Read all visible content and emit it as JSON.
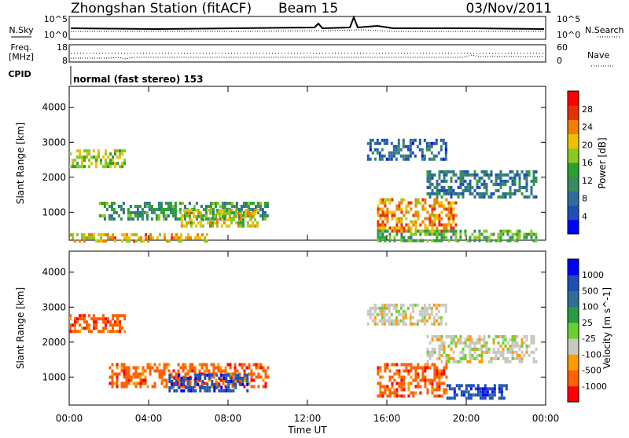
{
  "header": {
    "station": "Zhongshan Station (fitACF)",
    "beam": "Beam 15",
    "date": "03/Nov/2011"
  },
  "top_panel": {
    "nsky_label": "N.Sky",
    "nsearch_label": "N.Search",
    "left_ticks": [
      "10^5",
      "10^0"
    ],
    "right_ticks": [
      "10^5",
      "10^0"
    ]
  },
  "freq_panel": {
    "freq_label": "Freq.",
    "freq_unit": "[MHz]",
    "nave_label": "Nave",
    "left_ticks": [
      "18",
      "8"
    ],
    "right_ticks": [
      "60",
      "0"
    ]
  },
  "cpid_panel": {
    "label": "CPID",
    "mode_text": "normal (fast stereo) 153"
  },
  "colors": {
    "power_scale": [
      "#0000ff",
      "#1e4fb4",
      "#2e6e9a",
      "#3a8a60",
      "#2aa030",
      "#8dc820",
      "#f0c000",
      "#f08000",
      "#e83000",
      "#ff0000"
    ],
    "velocity_scale": [
      "#ff0000",
      "#ff6000",
      "#ff9a00",
      "#c8c8c0",
      "#6ad030",
      "#2a9a40",
      "#2e6e9a",
      "#1e4fb4",
      "#0000ff"
    ]
  },
  "chart_data": [
    {
      "type": "heatmap",
      "title": "",
      "xlabel": "Time UT",
      "ylabel": "Slant Range [km]",
      "x_ticks": [
        "00:00",
        "04:00",
        "08:00",
        "12:00",
        "16:00",
        "20:00",
        "00:00"
      ],
      "y_ticks": [
        "1000",
        "2000",
        "3000",
        "4000"
      ],
      "ylim": [
        200,
        4600
      ],
      "colorbar": {
        "label": "Power [dB]",
        "ticks": [
          "4",
          "8",
          "12",
          "16",
          "20",
          "24",
          "28"
        ],
        "range": [
          0,
          32
        ]
      },
      "echo_regions": [
        {
          "t0": 0.0,
          "t1": 2.8,
          "r0": 2300,
          "r1": 2800,
          "level": 18
        },
        {
          "t0": 1.5,
          "t1": 10.0,
          "r0": 800,
          "r1": 1300,
          "level": 12
        },
        {
          "t0": 5.5,
          "t1": 9.5,
          "r0": 600,
          "r1": 1100,
          "level": 20
        },
        {
          "t0": 0.0,
          "t1": 7.0,
          "r0": 200,
          "r1": 400,
          "level": 22
        },
        {
          "t0": 15.5,
          "t1": 19.5,
          "r0": 500,
          "r1": 1400,
          "level": 24
        },
        {
          "t0": 15.5,
          "t1": 23.5,
          "r0": 200,
          "r1": 500,
          "level": 14
        },
        {
          "t0": 15.0,
          "t1": 19.0,
          "r0": 2500,
          "r1": 3100,
          "level": 6
        },
        {
          "t0": 18.0,
          "t1": 23.5,
          "r0": 1400,
          "r1": 2200,
          "level": 8
        }
      ]
    },
    {
      "type": "heatmap",
      "title": "",
      "xlabel": "Time UT",
      "ylabel": "Slant Range [km]",
      "x_ticks": [
        "00:00",
        "04:00",
        "08:00",
        "12:00",
        "16:00",
        "20:00",
        "00:00"
      ],
      "y_ticks": [
        "1000",
        "2000",
        "3000",
        "4000"
      ],
      "ylim": [
        200,
        4600
      ],
      "colorbar": {
        "label": "Velocity [m s^-1]",
        "ticks": [
          "1000",
          "500",
          "100",
          "25",
          "-25",
          "-100",
          "-500",
          "-1000"
        ]
      },
      "echo_regions": [
        {
          "t0": 0.0,
          "t1": 2.8,
          "r0": 2300,
          "r1": 2800,
          "velocity": -300
        },
        {
          "t0": 2.0,
          "t1": 10.0,
          "r0": 700,
          "r1": 1400,
          "velocity": -200
        },
        {
          "t0": 5.0,
          "t1": 9.0,
          "r0": 600,
          "r1": 1100,
          "velocity": 200
        },
        {
          "t0": 15.5,
          "t1": 19.0,
          "r0": 500,
          "r1": 1400,
          "velocity": -250
        },
        {
          "t0": 15.0,
          "t1": 19.0,
          "r0": 2500,
          "r1": 3100,
          "velocity": 0
        },
        {
          "t0": 18.0,
          "t1": 23.5,
          "r0": 1400,
          "r1": 2200,
          "velocity": 0
        },
        {
          "t0": 19.0,
          "t1": 22.0,
          "r0": 400,
          "r1": 800,
          "velocity": 300
        }
      ]
    }
  ]
}
